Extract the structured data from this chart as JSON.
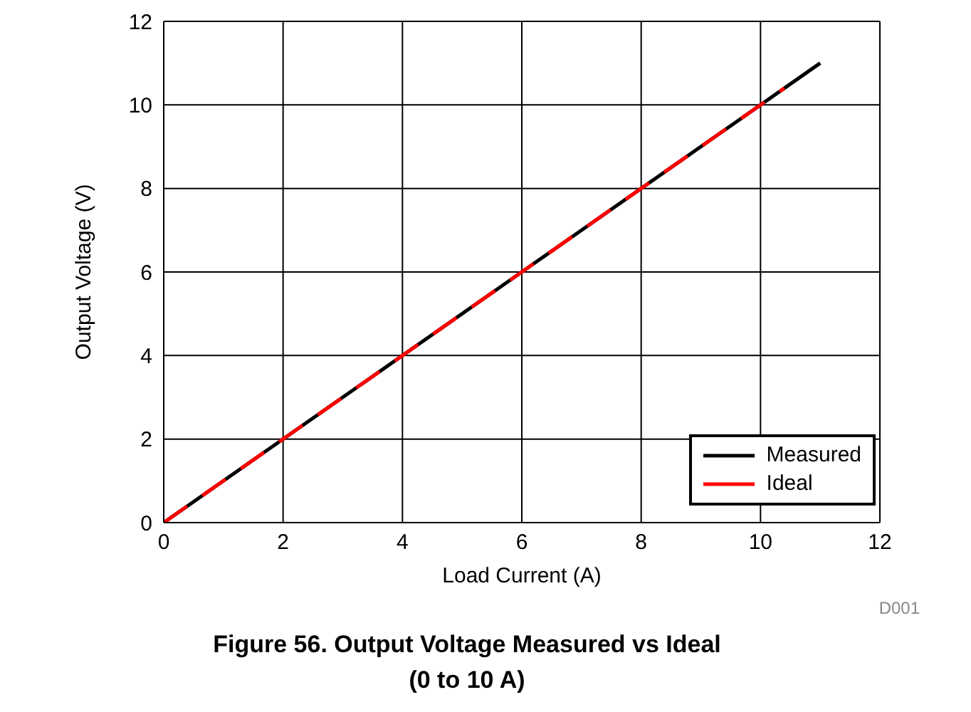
{
  "chart_data": {
    "type": "line",
    "title": "Figure 56. Output Voltage Measured vs Ideal",
    "subtitle": "(0 to 10 A)",
    "xlabel": "Load Current (A)",
    "ylabel": "Output Voltage (V)",
    "annotations": [
      "D001"
    ],
    "series": [
      {
        "name": "Measured",
        "color": "#000000",
        "x": [
          0,
          11
        ],
        "values": [
          0,
          11
        ],
        "line_style": "solid"
      },
      {
        "name": "Ideal",
        "color": "#ff0000",
        "x": [
          0,
          10.4
        ],
        "values": [
          0,
          10.4
        ],
        "line_style": "dashed"
      }
    ],
    "xlim": [
      0,
      12
    ],
    "xticks": [
      0,
      2,
      4,
      6,
      8,
      10,
      12
    ],
    "ylim": [
      0,
      12
    ],
    "yticks": [
      0,
      2,
      4,
      6,
      8,
      10,
      12
    ],
    "grid": true,
    "legend": "bottom right",
    "marker": "none"
  }
}
